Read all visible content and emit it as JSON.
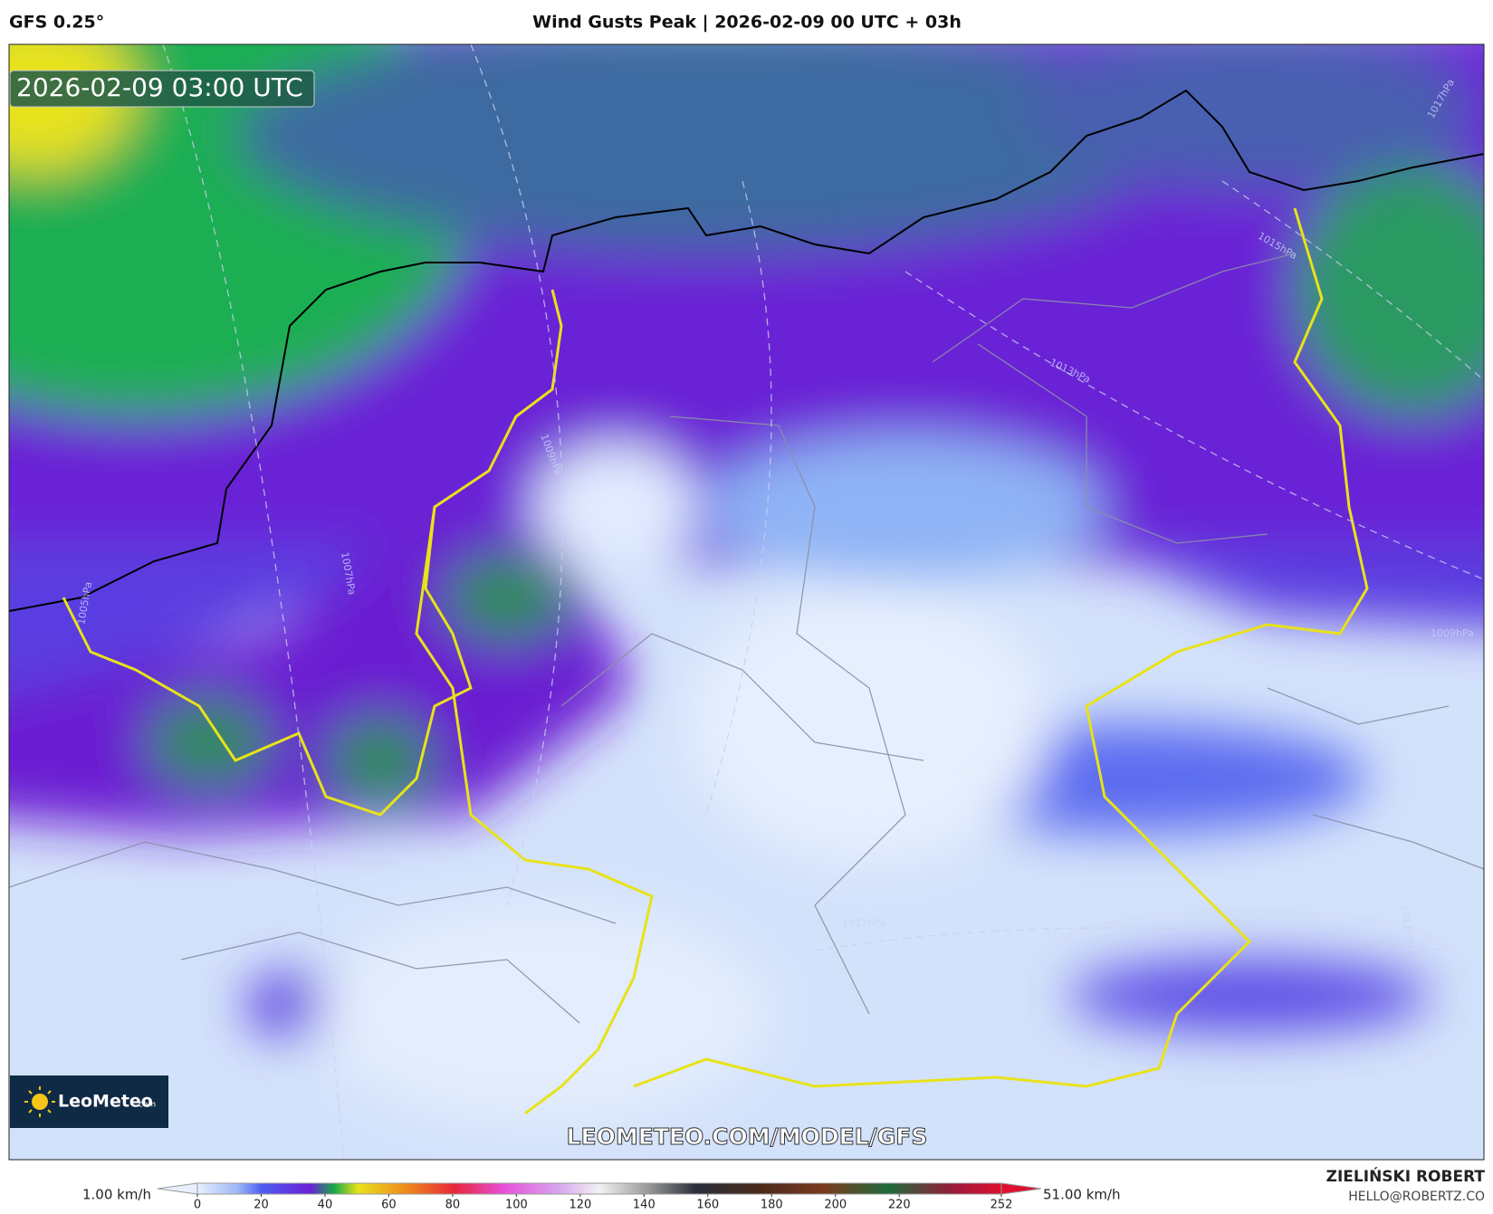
{
  "header": {
    "model": "GFS 0.25°",
    "title": "Wind Gusts Peak | 2026-02-09 00 UTC + 03h"
  },
  "map": {
    "timestamp": "2026-02-09 03:00 UTC",
    "watermark": "LEOMETEO.COM/MODEL/GFS",
    "logo": {
      "name": "LeoMeteo",
      "suffix": ".com"
    },
    "isobars": [
      "1005hPa",
      "1007hPa",
      "1009hPa",
      "1011hPa",
      "1013hPa",
      "1015hPa",
      "1017hPa",
      "1009hPa",
      "1011hPa"
    ]
  },
  "colorbar": {
    "min_label": "1.00 km/h",
    "max_label": "51.00 km/h",
    "lim": [
      0,
      252
    ],
    "ticks": [
      0,
      20,
      40,
      60,
      80,
      100,
      120,
      140,
      160,
      180,
      200,
      220,
      252
    ]
  },
  "footer": {
    "author": "ZIELIŃSKI ROBERT",
    "email": "HELLO@ROBERTZ.CO"
  }
}
